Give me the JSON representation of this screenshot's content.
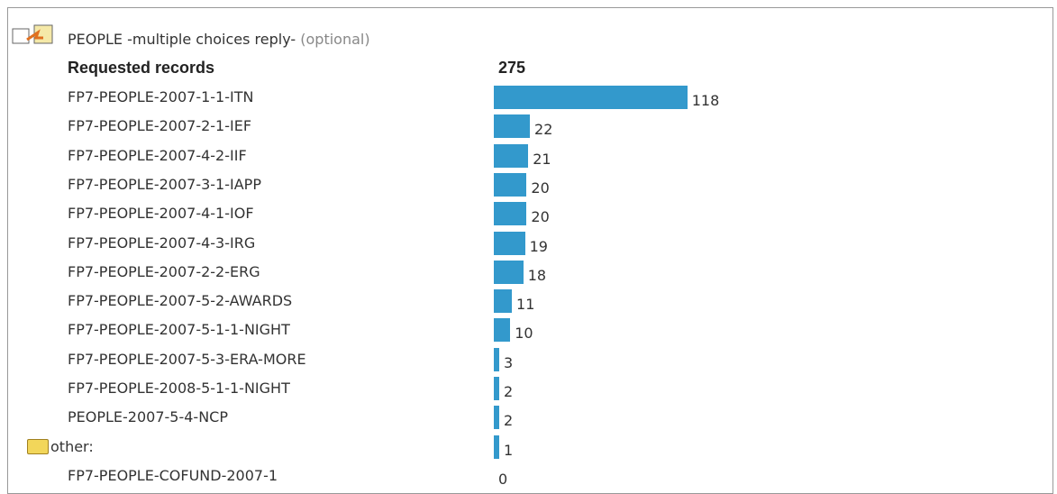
{
  "header": {
    "title": "PEOPLE -multiple choices reply-",
    "note": "(optional)"
  },
  "table": {
    "total_label": "Requested records",
    "total": 275,
    "rows": [
      {
        "label": "FP7-PEOPLE-2007-1-1-ITN",
        "value": 118
      },
      {
        "label": "FP7-PEOPLE-2007-2-1-IEF",
        "value": 22
      },
      {
        "label": "FP7-PEOPLE-2007-4-2-IIF",
        "value": 21
      },
      {
        "label": "FP7-PEOPLE-2007-3-1-IAPP",
        "value": 20
      },
      {
        "label": "FP7-PEOPLE-2007-4-1-IOF",
        "value": 20
      },
      {
        "label": "FP7-PEOPLE-2007-4-3-IRG",
        "value": 19
      },
      {
        "label": "FP7-PEOPLE-2007-2-2-ERG",
        "value": 18
      },
      {
        "label": "FP7-PEOPLE-2007-5-2-AWARDS",
        "value": 11
      },
      {
        "label": "FP7-PEOPLE-2007-5-1-1-NIGHT",
        "value": 10
      },
      {
        "label": "FP7-PEOPLE-2007-5-3-ERA-MORE",
        "value": 3
      },
      {
        "label": "FP7-PEOPLE-2008-5-1-1-NIGHT",
        "value": 2
      },
      {
        "label": "PEOPLE-2007-5-4-NCP",
        "value": 2
      },
      {
        "label": "other:",
        "value": 1
      },
      {
        "label": "FP7-PEOPLE-COFUND-2007-1",
        "value": 0
      }
    ]
  }
}
